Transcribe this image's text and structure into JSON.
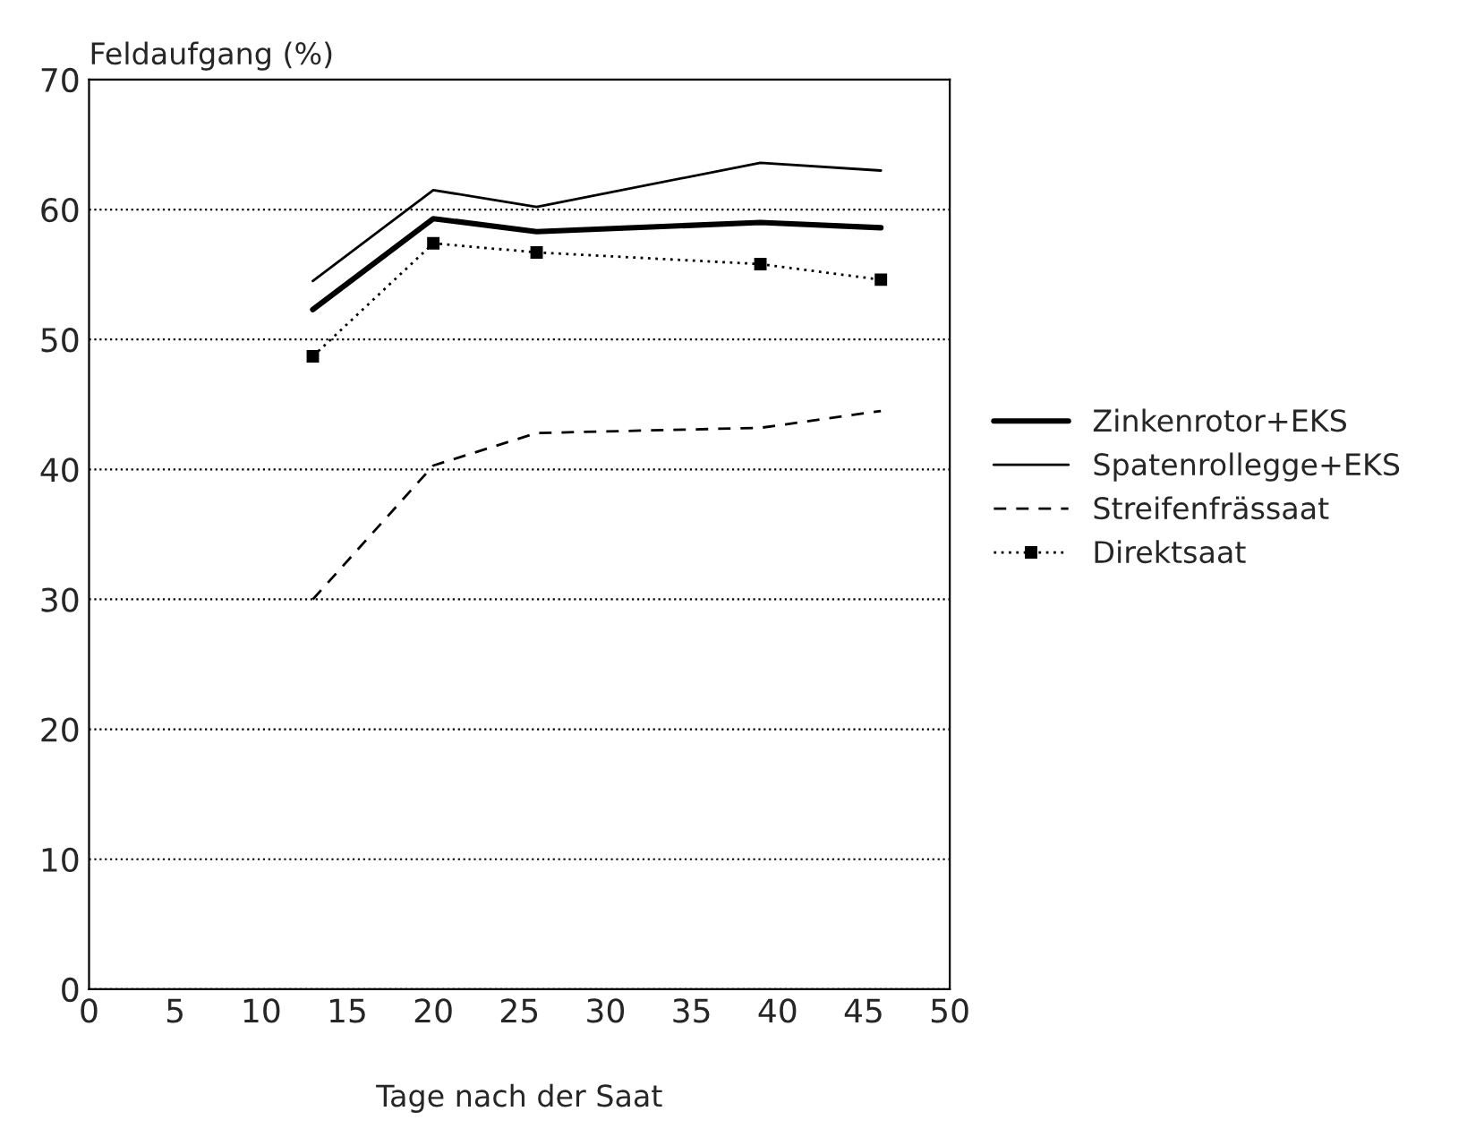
{
  "chart_data": {
    "type": "line",
    "ylabel": "Feldaufgang (%)",
    "xlabel": "Tage nach der Saat",
    "x": [
      13,
      20,
      26,
      39,
      46
    ],
    "series": [
      {
        "name": "Zinkenrotor+EKS",
        "color": "#000000",
        "values": [
          52.3,
          59.3,
          58.3,
          59.0,
          58.6
        ],
        "line_style": "solid"
      },
      {
        "name": "Spatenrollegge+EKS",
        "color": "#000000",
        "values": [
          54.5,
          61.5,
          60.2,
          63.6,
          63.0
        ],
        "line_style": "solid"
      },
      {
        "name": "Streifenfrässaat",
        "color": "#000000",
        "values": [
          30.0,
          40.3,
          42.8,
          43.2,
          44.5
        ],
        "line_style": "dashed"
      },
      {
        "name": "Direktsaat",
        "color": "#000000",
        "values": [
          48.7,
          57.4,
          56.7,
          55.8,
          54.6
        ],
        "line_style": "dotted",
        "marker": "square"
      }
    ],
    "xlim": [
      0,
      50
    ],
    "xticks": [
      0,
      5,
      10,
      15,
      20,
      25,
      30,
      35,
      40,
      45,
      50
    ],
    "ylim": [
      0,
      70
    ],
    "yticks": [
      0,
      10,
      20,
      30,
      40,
      50,
      60,
      70
    ],
    "grid": "y",
    "legend": "right"
  }
}
